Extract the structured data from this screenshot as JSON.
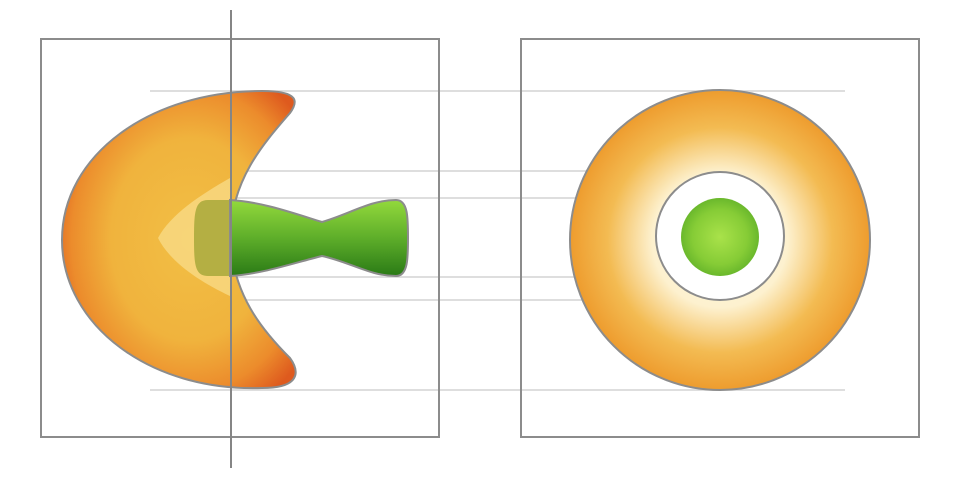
{
  "colors": {
    "frame": "#8c8c8c",
    "guide": "#d4d4d4",
    "axis": "#858585",
    "outline": "#8c8c8c",
    "orange_edge": "#de5a1e",
    "orange_mid": "#ee9c2e",
    "orange_core": "#f2bf45",
    "cream_center": "#fff8e2",
    "green_light": "#93d93c",
    "green_dark": "#2a7a16",
    "background": "#ffffff"
  },
  "views": [
    {
      "name": "side-view",
      "parts": [
        "crescent-shell",
        "green-stem",
        "revolution-axis"
      ]
    },
    {
      "name": "top-view",
      "parts": [
        "outer-ring",
        "hollow-gap",
        "green-core"
      ]
    }
  ]
}
